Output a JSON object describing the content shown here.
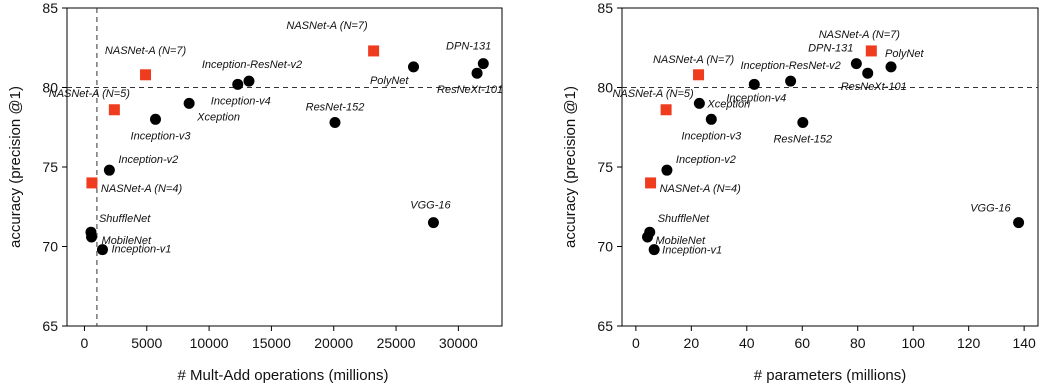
{
  "chart_data": [
    {
      "type": "scatter",
      "xlabel": "# Mult-Add operations (millions)",
      "ylabel": "accuracy (precision @1)",
      "xlim": [
        -1400,
        33500
      ],
      "ylim": [
        65,
        85
      ],
      "xticks": [
        0,
        5000,
        10000,
        15000,
        20000,
        25000,
        30000
      ],
      "yticks": [
        65,
        70,
        75,
        80,
        85
      ],
      "grid": false,
      "ref_lines": {
        "h": 80,
        "v": 1000
      },
      "points": [
        {
          "label": "NASNet-A (N=7)",
          "x": 23200,
          "y": 82.3,
          "kind": "nasnet",
          "anchor": "end",
          "dx": -6,
          "dy": -22
        },
        {
          "label": "NASNet-A (N=7)",
          "x": 4900,
          "y": 80.8,
          "kind": "nasnet",
          "anchor": "middle",
          "dx": 0,
          "dy": -21
        },
        {
          "label": "NASNet-A (N=5)",
          "x": 2400,
          "y": 78.6,
          "kind": "nasnet",
          "anchor": "middle",
          "dx": -25,
          "dy": -13
        },
        {
          "label": "NASNet-A (N=4)",
          "x": 600,
          "y": 74.0,
          "kind": "nasnet",
          "anchor": "start",
          "dx": 9,
          "dy": 9
        },
        {
          "label": "DPN-131",
          "x": 32000,
          "y": 81.5,
          "kind": "other",
          "anchor": "end",
          "dx": 8,
          "dy": -14
        },
        {
          "label": "ResNeXt-101",
          "x": 31500,
          "y": 80.9,
          "kind": "other",
          "anchor": "end",
          "dx": 26,
          "dy": 20
        },
        {
          "label": "PolyNet",
          "x": 26400,
          "y": 81.3,
          "kind": "other",
          "anchor": "end",
          "dx": -5,
          "dy": 17
        },
        {
          "label": "Inception-ResNet-v2",
          "x": 13200,
          "y": 80.4,
          "kind": "other",
          "anchor": "middle",
          "dx": 3,
          "dy": -13
        },
        {
          "label": "Inception-v4",
          "x": 12300,
          "y": 80.2,
          "kind": "other",
          "anchor": "middle",
          "dx": 3,
          "dy": 20
        },
        {
          "label": "ResNet-152",
          "x": 20100,
          "y": 77.8,
          "kind": "other",
          "anchor": "middle",
          "dx": 0,
          "dy": -12
        },
        {
          "label": "Xception",
          "x": 8400,
          "y": 79.0,
          "kind": "other",
          "anchor": "start",
          "dx": 8,
          "dy": 17
        },
        {
          "label": "Inception-v3",
          "x": 5700,
          "y": 78.0,
          "kind": "other",
          "anchor": "middle",
          "dx": 5,
          "dy": 20
        },
        {
          "label": "Inception-v2",
          "x": 2000,
          "y": 74.8,
          "kind": "other",
          "anchor": "start",
          "dx": 9,
          "dy": -7
        },
        {
          "label": "VGG-16",
          "x": 28000,
          "y": 71.5,
          "kind": "other",
          "anchor": "middle",
          "dx": -3,
          "dy": -14
        },
        {
          "label": "ShuffleNet",
          "x": 524,
          "y": 70.9,
          "kind": "other",
          "anchor": "start",
          "dx": 8,
          "dy": -10
        },
        {
          "label": "MobileNet",
          "x": 569,
          "y": 70.6,
          "kind": "other",
          "anchor": "start",
          "dx": 10,
          "dy": 7
        },
        {
          "label": "Inception-v1",
          "x": 1448,
          "y": 69.8,
          "kind": "other",
          "anchor": "start",
          "dx": 9,
          "dy": 3
        }
      ]
    },
    {
      "type": "scatter",
      "xlabel": "# parameters (millions)",
      "ylabel": "accuracy (precision @1)",
      "xlim": [
        -5,
        145
      ],
      "ylim": [
        65,
        85
      ],
      "xticks": [
        0,
        20,
        40,
        60,
        80,
        100,
        120,
        140
      ],
      "yticks": [
        65,
        70,
        75,
        80,
        85
      ],
      "grid": false,
      "ref_lines": {
        "h": 80
      },
      "points": [
        {
          "label": "NASNet-A (N=7)",
          "x": 84.9,
          "y": 82.3,
          "kind": "nasnet",
          "anchor": "middle",
          "dx": -12,
          "dy": -13
        },
        {
          "label": "NASNet-A (N=7)",
          "x": 22.6,
          "y": 80.8,
          "kind": "nasnet",
          "anchor": "middle",
          "dx": -5,
          "dy": -12
        },
        {
          "label": "NASNet-A (N=5)",
          "x": 10.9,
          "y": 78.6,
          "kind": "nasnet",
          "anchor": "middle",
          "dx": -13,
          "dy": -13
        },
        {
          "label": "NASNet-A (N=4)",
          "x": 5.3,
          "y": 74.0,
          "kind": "nasnet",
          "anchor": "start",
          "dx": 9,
          "dy": 9
        },
        {
          "label": "PolyNet",
          "x": 92.0,
          "y": 81.3,
          "kind": "other",
          "anchor": "start",
          "dx": -6,
          "dy": -10
        },
        {
          "label": "DPN-131",
          "x": 79.5,
          "y": 81.5,
          "kind": "other",
          "anchor": "end",
          "dx": -3,
          "dy": -12
        },
        {
          "label": "Inception-ResNet-v2",
          "x": 55.8,
          "y": 80.4,
          "kind": "other",
          "anchor": "middle",
          "dx": 0,
          "dy": -12
        },
        {
          "label": "Inception-v4",
          "x": 42.7,
          "y": 80.2,
          "kind": "other",
          "anchor": "middle",
          "dx": 2,
          "dy": 17
        },
        {
          "label": "ResNeXt-101",
          "x": 83.6,
          "y": 80.9,
          "kind": "other",
          "anchor": "middle",
          "dx": 6,
          "dy": 17
        },
        {
          "label": "ResNet-152",
          "x": 60.2,
          "y": 77.8,
          "kind": "other",
          "anchor": "middle",
          "dx": 0,
          "dy": 20
        },
        {
          "label": "Xception",
          "x": 22.9,
          "y": 79.0,
          "kind": "other",
          "anchor": "start",
          "dx": 8,
          "dy": 4
        },
        {
          "label": "Inception-v3",
          "x": 27.2,
          "y": 78.0,
          "kind": "other",
          "anchor": "middle",
          "dx": 0,
          "dy": 20
        },
        {
          "label": "Inception-v2",
          "x": 11.2,
          "y": 74.8,
          "kind": "other",
          "anchor": "start",
          "dx": 9,
          "dy": -7
        },
        {
          "label": "VGG-16",
          "x": 138.0,
          "y": 71.5,
          "kind": "other",
          "anchor": "end",
          "dx": -8,
          "dy": -11
        },
        {
          "label": "ShuffleNet",
          "x": 5.0,
          "y": 70.9,
          "kind": "other",
          "anchor": "start",
          "dx": 8,
          "dy": -10
        },
        {
          "label": "MobileNet",
          "x": 4.2,
          "y": 70.6,
          "kind": "other",
          "anchor": "start",
          "dx": 8,
          "dy": 7
        },
        {
          "label": "Inception-v1",
          "x": 6.6,
          "y": 69.8,
          "kind": "other",
          "anchor": "start",
          "dx": 8,
          "dy": 4
        }
      ]
    }
  ],
  "colors": {
    "nasnet": "#f03c1e",
    "other": "#000000",
    "ref_line": "#333333",
    "axis": "#000000"
  }
}
